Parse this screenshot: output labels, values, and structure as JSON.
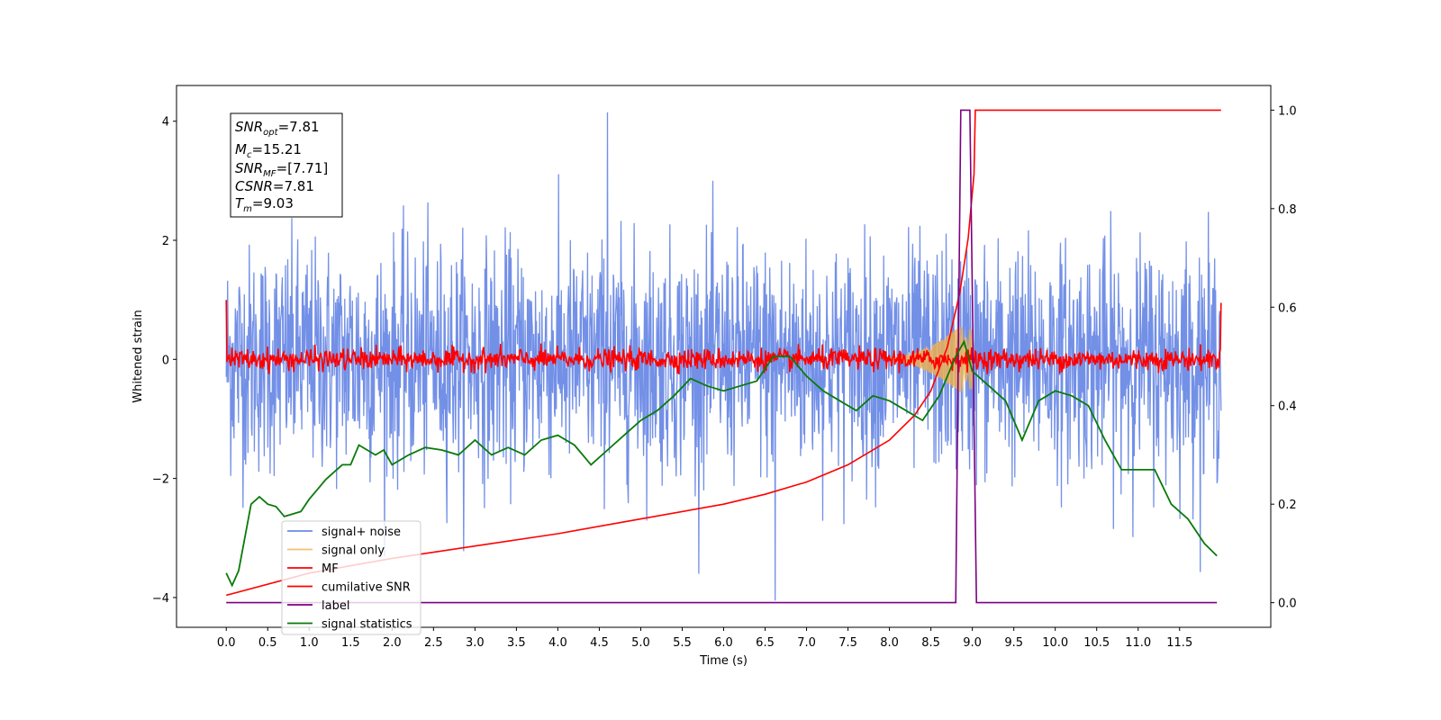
{
  "chart_data": {
    "type": "line",
    "xlabel": "Time (s)",
    "ylabel": "Whitened strain",
    "xlim": [
      -0.6,
      12.6
    ],
    "ylim": [
      -4.5,
      4.6
    ],
    "y2lim": [
      -0.05,
      1.05
    ],
    "x_ticks": [
      "0.0",
      "0.5",
      "1.0",
      "1.5",
      "2.0",
      "2.5",
      "3.0",
      "3.5",
      "4.0",
      "4.5",
      "5.0",
      "5.5",
      "6.0",
      "6.5",
      "7.0",
      "7.5",
      "8.0",
      "8.5",
      "9.0",
      "9.5",
      "10.0",
      "10.5",
      "11.0",
      "11.5"
    ],
    "y_ticks": [
      "4",
      "2",
      "0",
      "−2",
      "−4"
    ],
    "y2_ticks": [
      "1.0",
      "0.8",
      "0.6",
      "0.4",
      "0.2",
      "0.0"
    ],
    "annotation": {
      "snr_opt": "=7.81",
      "mc": "=15.21",
      "snr_mf": "=[7.71]",
      "csnr": "=7.81",
      "tm": "=9.03"
    },
    "legend": {
      "placement": "lower-left",
      "entries": [
        "signal+ noise",
        "signal only",
        "MF",
        "cumilative SNR",
        "label",
        "signal statistics"
      ]
    },
    "series": [
      {
        "name": "signal+ noise",
        "axis": "left",
        "color": "#6b8ae6",
        "kind": "noise",
        "x_range": [
          0,
          12
        ],
        "amplitude_std": 1.0,
        "peak_extremes": {
          "max": 4.15,
          "min": -4.05
        }
      },
      {
        "name": "signal only",
        "axis": "left",
        "color": "#f0b04c",
        "kind": "chirp",
        "x_range": [
          8.0,
          9.03
        ],
        "envelope": [
          [
            8.0,
            0.02
          ],
          [
            8.3,
            0.1
          ],
          [
            8.6,
            0.3
          ],
          [
            8.85,
            0.55
          ],
          [
            9.0,
            0.5
          ],
          [
            9.03,
            0.0
          ]
        ]
      },
      {
        "name": "MF",
        "axis": "left",
        "color": "#ff0000",
        "kind": "noise",
        "x_range": [
          0,
          12
        ],
        "amplitude_std": 0.09,
        "edge_values": [
          1.0,
          0.95
        ]
      },
      {
        "name": "cumilative SNR",
        "axis": "right",
        "color": "#ff0000",
        "points": [
          [
            0.0,
            0.015
          ],
          [
            1.0,
            0.06
          ],
          [
            2.0,
            0.09
          ],
          [
            3.0,
            0.115
          ],
          [
            4.0,
            0.14
          ],
          [
            5.0,
            0.17
          ],
          [
            6.0,
            0.2
          ],
          [
            6.5,
            0.22
          ],
          [
            7.0,
            0.245
          ],
          [
            7.5,
            0.28
          ],
          [
            8.0,
            0.33
          ],
          [
            8.3,
            0.38
          ],
          [
            8.5,
            0.43
          ],
          [
            8.7,
            0.52
          ],
          [
            8.85,
            0.63
          ],
          [
            8.95,
            0.74
          ],
          [
            9.02,
            0.87
          ],
          [
            9.035,
            1.0
          ],
          [
            12.0,
            1.0
          ]
        ]
      },
      {
        "name": "label",
        "axis": "right",
        "color": "#7b0080",
        "points": [
          [
            0.0,
            0.0
          ],
          [
            8.8,
            0.0
          ],
          [
            8.86,
            1.0
          ],
          [
            8.97,
            1.0
          ],
          [
            9.05,
            0.0
          ],
          [
            11.95,
            0.0
          ]
        ]
      },
      {
        "name": "signal statistics",
        "axis": "right",
        "color": "#0a7a0a",
        "points": [
          [
            0.0,
            0.06
          ],
          [
            0.07,
            0.035
          ],
          [
            0.15,
            0.065
          ],
          [
            0.3,
            0.2
          ],
          [
            0.4,
            0.215
          ],
          [
            0.5,
            0.2
          ],
          [
            0.6,
            0.195
          ],
          [
            0.7,
            0.175
          ],
          [
            0.8,
            0.18
          ],
          [
            0.9,
            0.185
          ],
          [
            1.0,
            0.21
          ],
          [
            1.1,
            0.23
          ],
          [
            1.2,
            0.25
          ],
          [
            1.3,
            0.265
          ],
          [
            1.4,
            0.28
          ],
          [
            1.5,
            0.28
          ],
          [
            1.6,
            0.32
          ],
          [
            1.7,
            0.31
          ],
          [
            1.8,
            0.3
          ],
          [
            1.9,
            0.31
          ],
          [
            2.0,
            0.28
          ],
          [
            2.2,
            0.3
          ],
          [
            2.4,
            0.315
          ],
          [
            2.6,
            0.31
          ],
          [
            2.8,
            0.3
          ],
          [
            3.0,
            0.33
          ],
          [
            3.2,
            0.3
          ],
          [
            3.4,
            0.315
          ],
          [
            3.6,
            0.3
          ],
          [
            3.8,
            0.33
          ],
          [
            4.0,
            0.34
          ],
          [
            4.2,
            0.32
          ],
          [
            4.4,
            0.28
          ],
          [
            4.6,
            0.31
          ],
          [
            4.8,
            0.34
          ],
          [
            5.0,
            0.37
          ],
          [
            5.2,
            0.39
          ],
          [
            5.4,
            0.42
          ],
          [
            5.6,
            0.455
          ],
          [
            5.8,
            0.44
          ],
          [
            6.0,
            0.43
          ],
          [
            6.2,
            0.44
          ],
          [
            6.4,
            0.45
          ],
          [
            6.6,
            0.5
          ],
          [
            6.8,
            0.5
          ],
          [
            7.0,
            0.46
          ],
          [
            7.2,
            0.43
          ],
          [
            7.4,
            0.41
          ],
          [
            7.6,
            0.39
          ],
          [
            7.8,
            0.42
          ],
          [
            8.0,
            0.41
          ],
          [
            8.2,
            0.39
          ],
          [
            8.4,
            0.37
          ],
          [
            8.6,
            0.42
          ],
          [
            8.8,
            0.5
          ],
          [
            8.9,
            0.53
          ],
          [
            9.0,
            0.47
          ],
          [
            9.2,
            0.44
          ],
          [
            9.4,
            0.41
          ],
          [
            9.6,
            0.33
          ],
          [
            9.8,
            0.41
          ],
          [
            10.0,
            0.43
          ],
          [
            10.2,
            0.42
          ],
          [
            10.4,
            0.4
          ],
          [
            10.6,
            0.33
          ],
          [
            10.8,
            0.27
          ],
          [
            11.0,
            0.27
          ],
          [
            11.2,
            0.27
          ],
          [
            11.4,
            0.2
          ],
          [
            11.6,
            0.17
          ],
          [
            11.8,
            0.12
          ],
          [
            11.95,
            0.095
          ]
        ]
      }
    ]
  }
}
